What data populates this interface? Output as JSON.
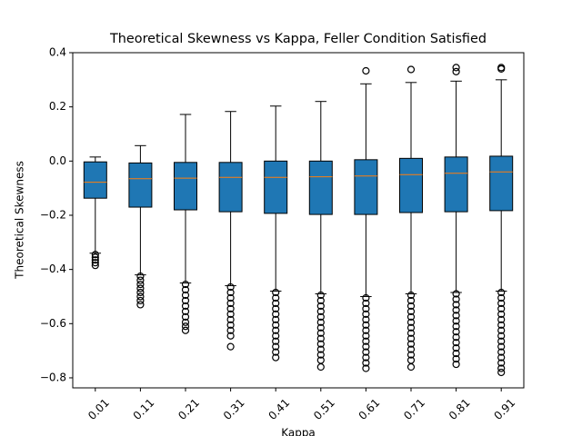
{
  "chart_data": {
    "type": "box",
    "title": "Theoretical Skewness vs Kappa, Feller Condition Satisfied",
    "xlabel": "Kappa",
    "ylabel": "Theoretical Skewness",
    "categories": [
      "0.01",
      "0.11",
      "0.21",
      "0.31",
      "0.41",
      "0.51",
      "0.61",
      "0.71",
      "0.81",
      "0.91"
    ],
    "box_color": "#1f77b4",
    "median_color": "#ff7f0e",
    "ylim": [
      -0.837,
      0.4
    ],
    "yticks": [
      0.4,
      0.2,
      {
        "value": 0,
        "label": "0.0"
      },
      {
        "value": -0.2,
        "label": "−0.2"
      },
      {
        "value": -0.4,
        "label": "−0.4"
      },
      {
        "value": -0.6,
        "label": "−0.6"
      },
      {
        "value": -0.8,
        "label": "−0.8"
      }
    ],
    "boxes": [
      {
        "low": -0.34,
        "q1": -0.137,
        "median": -0.078,
        "q3": -0.003,
        "high": 0.015,
        "outliers": [
          -0.345,
          -0.355,
          -0.365,
          -0.375,
          -0.385
        ]
      },
      {
        "low": -0.42,
        "q1": -0.17,
        "median": -0.065,
        "q3": -0.007,
        "high": 0.057,
        "outliers": [
          -0.425,
          -0.44,
          -0.455,
          -0.47,
          -0.485,
          -0.5,
          -0.515,
          -0.53
        ]
      },
      {
        "low": -0.45,
        "q1": -0.18,
        "median": -0.063,
        "q3": -0.005,
        "high": 0.172,
        "outliers": [
          -0.455,
          -0.475,
          -0.495,
          -0.515,
          -0.535,
          -0.555,
          -0.575,
          -0.595,
          -0.61,
          -0.625
        ]
      },
      {
        "low": -0.46,
        "q1": -0.187,
        "median": -0.06,
        "q3": -0.005,
        "high": 0.183,
        "outliers": [
          -0.465,
          -0.485,
          -0.505,
          -0.525,
          -0.545,
          -0.565,
          -0.585,
          -0.605,
          -0.625,
          -0.645,
          -0.685
        ]
      },
      {
        "low": -0.48,
        "q1": -0.193,
        "median": -0.06,
        "q3": 0,
        "high": 0.203,
        "outliers": [
          -0.485,
          -0.505,
          -0.525,
          -0.545,
          -0.565,
          -0.585,
          -0.605,
          -0.625,
          -0.645,
          -0.665,
          -0.685,
          -0.705,
          -0.725
        ]
      },
      {
        "low": -0.49,
        "q1": -0.197,
        "median": -0.058,
        "q3": 0,
        "high": 0.22,
        "outliers": [
          -0.495,
          -0.515,
          -0.535,
          -0.555,
          -0.575,
          -0.595,
          -0.615,
          -0.635,
          -0.655,
          -0.675,
          -0.695,
          -0.715,
          -0.735,
          -0.76
        ]
      },
      {
        "low": -0.5,
        "q1": -0.197,
        "median": -0.055,
        "q3": 0.005,
        "high": 0.285,
        "outliers": [
          0.333,
          -0.505,
          -0.525,
          -0.545,
          -0.565,
          -0.585,
          -0.605,
          -0.625,
          -0.645,
          -0.665,
          -0.685,
          -0.705,
          -0.725,
          -0.745,
          -0.765
        ]
      },
      {
        "low": -0.49,
        "q1": -0.19,
        "median": -0.05,
        "q3": 0.01,
        "high": 0.29,
        "outliers": [
          0.338,
          -0.495,
          -0.515,
          -0.535,
          -0.555,
          -0.575,
          -0.595,
          -0.615,
          -0.635,
          -0.655,
          -0.675,
          -0.695,
          -0.715,
          -0.735,
          -0.76
        ]
      },
      {
        "low": -0.485,
        "q1": -0.187,
        "median": -0.045,
        "q3": 0.015,
        "high": 0.295,
        "outliers": [
          0.33,
          0.345,
          -0.49,
          -0.51,
          -0.53,
          -0.55,
          -0.57,
          -0.59,
          -0.61,
          -0.63,
          -0.65,
          -0.67,
          -0.69,
          -0.71,
          -0.73,
          -0.75
        ]
      },
      {
        "low": -0.48,
        "q1": -0.183,
        "median": -0.04,
        "q3": 0.018,
        "high": 0.3,
        "outliers": [
          0.34,
          0.345,
          -0.485,
          -0.505,
          -0.525,
          -0.545,
          -0.565,
          -0.585,
          -0.605,
          -0.625,
          -0.645,
          -0.665,
          -0.685,
          -0.705,
          -0.725,
          -0.745,
          -0.765,
          -0.78
        ]
      }
    ]
  }
}
